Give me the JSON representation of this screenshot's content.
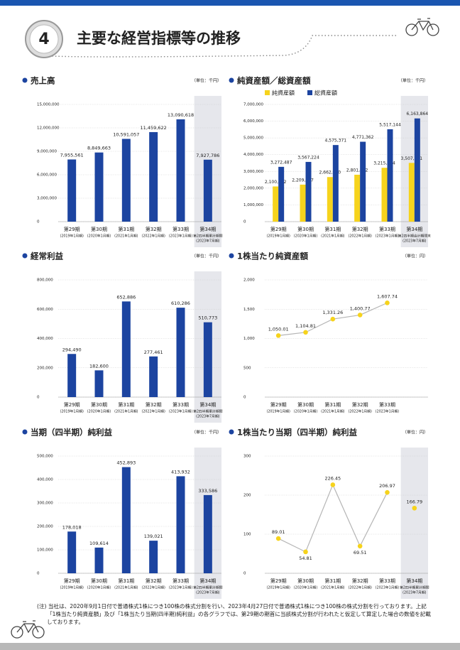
{
  "header": {
    "number": "4",
    "title": "主要な経営指標等の推移"
  },
  "chart_data": [
    {
      "type": "bar",
      "title": "売上高",
      "unit": "（単位：千円）",
      "categories": [
        "第29期",
        "第30期",
        "第31期",
        "第32期",
        "第33期",
        "第34期"
      ],
      "category_periods": [
        [
          "(2019年1月期)"
        ],
        [
          "(2020年1月期)"
        ],
        [
          "(2021年1月期)"
        ],
        [
          "(2022年1月期)"
        ],
        [
          "(2023年1月期)"
        ],
        [
          "第2四半期累計期間",
          "(2023年7月期)"
        ]
      ],
      "values": [
        7955561,
        8849663,
        10591057,
        11459622,
        13090618,
        7927786
      ],
      "value_labels": [
        "7,955,561",
        "8,849,663",
        "10,591,057",
        "11,459,622",
        "13,090,618",
        "7,927,786"
      ],
      "color": "#1c44a0",
      "highlight_color": "#e6e7ec",
      "ylim": [
        0,
        15000000
      ],
      "yticks": [
        0,
        {
          "value": 3000000,
          "label": "3,000,000"
        },
        {
          "value": 6000000,
          "label": "6,000,000"
        },
        {
          "value": 9000000,
          "label": "9,000,000"
        },
        {
          "value": 12000000,
          "label": "12,000,000"
        },
        {
          "value": 15000000,
          "label": "15,000,000"
        }
      ],
      "grid": true
    },
    {
      "type": "bar",
      "title": "純資産額／総資産額",
      "unit": "（単位：千円）",
      "categories": [
        "第29期",
        "第30期",
        "第31期",
        "第32期",
        "第33期",
        "第34期"
      ],
      "category_periods": [
        [
          "(2019年1月期)"
        ],
        [
          "(2020年1月期)"
        ],
        [
          "(2021年1月期)"
        ],
        [
          "(2022年1月期)"
        ],
        [
          "(2023年1月期)"
        ],
        [
          "第2四半期会計期間末",
          "(2023年7月期)"
        ]
      ],
      "series": [
        {
          "name": "純資産額",
          "color": "#f6d31c",
          "values": [
            2100092,
            2209627,
            2662520,
            2801592,
            3215494,
            3507661
          ],
          "value_labels": [
            "2,100,092",
            "2,209,627",
            "2,662,520",
            "2,801,592",
            "3,215,494",
            "3,507,661"
          ]
        },
        {
          "name": "総資産額",
          "color": "#1c44a0",
          "values": [
            3272487,
            3567224,
            4575371,
            4771362,
            5517144,
            6163864
          ],
          "value_labels": [
            "3,272,487",
            "3,567,224",
            "4,575,371",
            "4,771,362",
            "5,517,144",
            "6,163,864"
          ]
        }
      ],
      "highlight_color": "#e6e7ec",
      "legend": "top-left",
      "ylim": [
        0,
        7000000
      ],
      "yticks": [
        0,
        {
          "value": 1000000,
          "label": "1,000,000"
        },
        {
          "value": 2000000,
          "label": "2,000,000"
        },
        {
          "value": 3000000,
          "label": "3,000,000"
        },
        {
          "value": 4000000,
          "label": "4,000,000"
        },
        {
          "value": 5000000,
          "label": "5,000,000"
        },
        {
          "value": 6000000,
          "label": "6,000,000"
        },
        {
          "value": 7000000,
          "label": "7,000,000"
        }
      ],
      "grid": true
    },
    {
      "type": "bar",
      "title": "経常利益",
      "unit": "（単位：千円）",
      "categories": [
        "第29期",
        "第30期",
        "第31期",
        "第32期",
        "第33期",
        "第34期"
      ],
      "category_periods": [
        [
          "(2019年1月期)"
        ],
        [
          "(2020年1月期)"
        ],
        [
          "(2021年1月期)"
        ],
        [
          "(2022年1月期)"
        ],
        [
          "(2023年1月期)"
        ],
        [
          "第2四半期累計期間",
          "(2023年7月期)"
        ]
      ],
      "values": [
        294490,
        182600,
        652886,
        277461,
        610286,
        510773
      ],
      "value_labels": [
        "294,490",
        "182,600",
        "652,886",
        "277,461",
        "610,286",
        "510,773"
      ],
      "color": "#1c44a0",
      "highlight_color": "#e6e7ec",
      "ylim": [
        0,
        800000
      ],
      "yticks": [
        0,
        {
          "value": 200000,
          "label": "200,000"
        },
        {
          "value": 400000,
          "label": "400,000"
        },
        {
          "value": 600000,
          "label": "600,000"
        },
        {
          "value": 800000,
          "label": "800,000"
        }
      ],
      "grid": true
    },
    {
      "type": "line",
      "title": "1株当たり純資産額",
      "unit": "（単位：円）",
      "categories": [
        "第29期",
        "第30期",
        "第31期",
        "第32期",
        "第33期"
      ],
      "category_periods": [
        [
          "(2019年1月期)"
        ],
        [
          "(2020年1月期)"
        ],
        [
          "(2021年1月期)"
        ],
        [
          "(2022年1月期)"
        ],
        [
          "(2023年1月期)"
        ]
      ],
      "series": [
        {
          "color": "#f6d31c",
          "values": [
            1050.01,
            1104.81,
            1331.26,
            1400.77,
            1607.74
          ],
          "value_labels": [
            "1,050.01",
            "1,104.81",
            "1,331.26",
            "1,400.77",
            "1,607.74"
          ]
        }
      ],
      "line_color": "#b5b5b5",
      "ylim": [
        0,
        2000
      ],
      "yticks": [
        0,
        500,
        {
          "value": 1000,
          "label": "1,000"
        },
        {
          "value": 1500,
          "label": "1,500"
        },
        {
          "value": 2000,
          "label": "2,000"
        }
      ],
      "grid": true
    },
    {
      "type": "bar",
      "title": "当期（四半期）純利益",
      "unit": "（単位：千円）",
      "categories": [
        "第29期",
        "第30期",
        "第31期",
        "第32期",
        "第33期",
        "第34期"
      ],
      "category_periods": [
        [
          "(2019年1月期)"
        ],
        [
          "(2020年1月期)"
        ],
        [
          "(2021年1月期)"
        ],
        [
          "(2022年1月期)"
        ],
        [
          "(2023年1月期)"
        ],
        [
          "第2四半期累計期間",
          "(2023年7月期)"
        ]
      ],
      "values": [
        178018,
        109614,
        452893,
        139021,
        413932,
        333586
      ],
      "value_labels": [
        "178,018",
        "109,614",
        "452,893",
        "139,021",
        "413,932",
        "333,586"
      ],
      "color": "#1c44a0",
      "highlight_color": "#e6e7ec",
      "ylim": [
        0,
        500000
      ],
      "yticks": [
        0,
        {
          "value": 100000,
          "label": "100,000"
        },
        {
          "value": 200000,
          "label": "200,000"
        },
        {
          "value": 300000,
          "label": "300,000"
        },
        {
          "value": 400000,
          "label": "400,000"
        },
        {
          "value": 500000,
          "label": "500,000"
        }
      ],
      "grid": true
    },
    {
      "type": "line",
      "title": "1株当たり当期（四半期）純利益",
      "unit": "（単位：円）",
      "categories": [
        "第29期",
        "第30期",
        "第31期",
        "第32期",
        "第33期",
        "第34期"
      ],
      "category_periods": [
        [
          "(2019年1月期)"
        ],
        [
          "(2020年1月期)"
        ],
        [
          "(2021年1月期)"
        ],
        [
          "(2022年1月期)"
        ],
        [
          "(2023年1月期)"
        ],
        [
          "第2四半期累計期間",
          "(2023年7月期)"
        ]
      ],
      "series": [
        {
          "color": "#f6d31c",
          "values": [
            89.01,
            54.81,
            226.45,
            69.51,
            206.97,
            null
          ]
        },
        {
          "color": "#f6d31c",
          "values": [
            null,
            null,
            null,
            null,
            null,
            166.79
          ]
        }
      ],
      "line_color": "#b5b5b5",
      "highlight_color": "#e6e7ec",
      "ylim": [
        0,
        300
      ],
      "yticks": [
        0,
        100,
        200,
        300
      ],
      "grid": true
    }
  ],
  "note": "(注) 当社は、2020年9月1日付で普通株式1株につき100株の株式分割を行い、2023年4月27日付で普通株式1株につき100株の株式分割を行っております。上記「1株当たり純資産額」及び「1株当たり当期(四半期)純利益」の各グラフでは、第29期の期首に当該株式分割が行われたと仮定して算定した場合の数値を記載しております。"
}
